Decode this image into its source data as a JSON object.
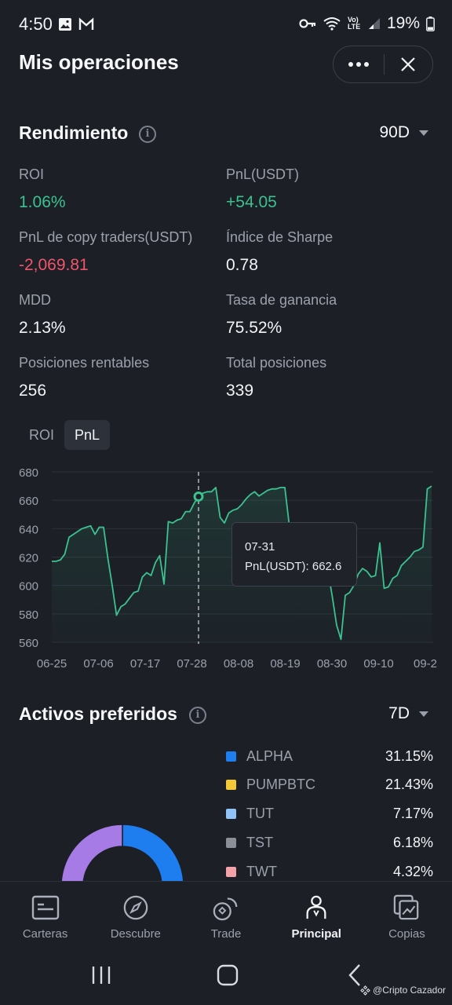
{
  "status_bar": {
    "time": "4:50",
    "battery": "19%",
    "network": "Vo) LTE"
  },
  "header": {
    "title": "Mis operaciones"
  },
  "performance": {
    "title": "Rendimiento",
    "period": "90D",
    "stats": [
      {
        "label": "ROI",
        "value": "1.06%",
        "tone": "green"
      },
      {
        "label": "PnL(USDT)",
        "value": "+54.05",
        "tone": "green"
      },
      {
        "label": "PnL de copy traders(USDT)",
        "value": "-2,069.81",
        "tone": "red"
      },
      {
        "label": "Índice de Sharpe",
        "value": "0.78",
        "tone": "white"
      },
      {
        "label": "MDD",
        "value": "2.13%",
        "tone": "white"
      },
      {
        "label": "Tasa de ganancia",
        "value": "75.52%",
        "tone": "white"
      },
      {
        "label": "Posiciones rentables",
        "value": "256",
        "tone": "white"
      },
      {
        "label": "Total posiciones",
        "value": "339",
        "tone": "white"
      }
    ]
  },
  "chart_toggle": {
    "tabs": [
      "ROI",
      "PnL"
    ],
    "active": "PnL"
  },
  "chart_data": {
    "type": "area",
    "ylim": [
      560,
      680
    ],
    "y_ticks": [
      680,
      660,
      640,
      620,
      600,
      580,
      560
    ],
    "x_ticks": [
      "06-25",
      "07-06",
      "07-17",
      "07-28",
      "08-08",
      "08-19",
      "08-30",
      "09-10",
      "09-2"
    ],
    "series": [
      {
        "values": [
          617,
          617,
          618,
          622,
          634,
          636,
          638,
          640,
          641,
          642,
          636,
          641,
          641,
          619,
          600,
          579,
          585,
          587,
          591,
          595,
          596,
          606,
          609,
          607,
          616,
          621,
          601,
          645,
          644,
          646,
          647,
          652,
          652,
          658,
          662.6,
          665,
          666,
          666,
          669,
          648,
          644,
          651,
          653,
          654,
          657,
          661,
          664,
          666,
          663,
          665,
          667,
          668,
          668,
          669,
          669,
          643,
          635,
          630,
          628,
          625,
          622,
          618,
          615,
          612,
          610,
          592,
          572,
          562,
          593,
          595,
          600,
          608,
          612,
          610,
          606,
          607,
          630,
          598,
          599,
          605,
          607,
          614,
          617,
          620,
          624,
          625,
          627,
          668,
          670
        ]
      }
    ],
    "highlight": {
      "date": "07-31",
      "label": "PnL(USDT): 662.6",
      "value": 662.6
    },
    "line_color": "#3cc28f"
  },
  "assets": {
    "title": "Activos preferidos",
    "period": "7D",
    "items": [
      {
        "name": "ALPHA",
        "pct": "31.15%",
        "color": "#1e7ef0"
      },
      {
        "name": "PUMPBTC",
        "pct": "21.43%",
        "color": "#f5c837"
      },
      {
        "name": "TUT",
        "pct": "7.17%",
        "color": "#90c4f8"
      },
      {
        "name": "TST",
        "pct": "6.18%",
        "color": "#8a8f98"
      },
      {
        "name": "TWT",
        "pct": "4.32%",
        "color": "#f4a1a8"
      }
    ]
  },
  "bottom_nav": {
    "items": [
      {
        "label": "Carteras",
        "icon": "wallet-icon"
      },
      {
        "label": "Descubre",
        "icon": "compass-icon"
      },
      {
        "label": "Trade",
        "icon": "trade-icon"
      },
      {
        "label": "Principal",
        "icon": "person-icon",
        "active": true
      },
      {
        "label": "Copias",
        "icon": "copy-chart-icon"
      }
    ]
  },
  "watermark": "@Cripto Cazador"
}
